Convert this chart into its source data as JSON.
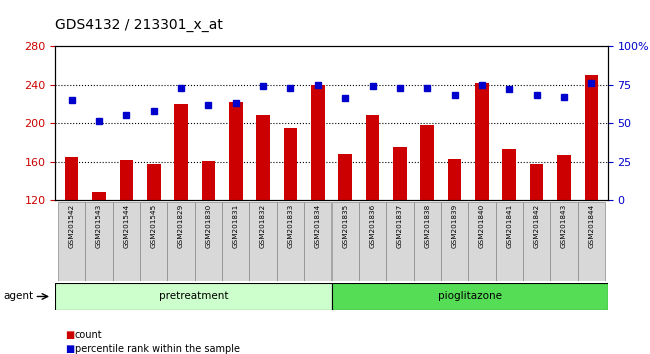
{
  "title": "GDS4132 / 213301_x_at",
  "samples": [
    "GSM201542",
    "GSM201543",
    "GSM201544",
    "GSM201545",
    "GSM201829",
    "GSM201830",
    "GSM201831",
    "GSM201832",
    "GSM201833",
    "GSM201834",
    "GSM201835",
    "GSM201836",
    "GSM201837",
    "GSM201838",
    "GSM201839",
    "GSM201840",
    "GSM201841",
    "GSM201842",
    "GSM201843",
    "GSM201844"
  ],
  "counts": [
    165,
    128,
    162,
    157,
    220,
    161,
    222,
    208,
    195,
    240,
    168,
    208,
    175,
    198,
    163,
    242,
    173,
    157,
    167,
    250
  ],
  "percentiles": [
    65,
    51,
    55,
    58,
    73,
    62,
    63,
    74,
    73,
    75,
    66,
    74,
    73,
    73,
    68,
    75,
    72,
    68,
    67,
    76
  ],
  "pretreatment_count": 10,
  "pioglitazone_count": 10,
  "ylim_left": [
    120,
    280
  ],
  "ylim_right": [
    0,
    100
  ],
  "yticks_left": [
    120,
    160,
    200,
    240,
    280
  ],
  "yticks_right": [
    0,
    25,
    50,
    75,
    100
  ],
  "ytick_labels_right": [
    "0",
    "25",
    "50",
    "75",
    "100%"
  ],
  "hgrid_lines": [
    160,
    200,
    240
  ],
  "bar_color": "#cc0000",
  "dot_color": "#0000cc",
  "pretreatment_color": "#ccffcc",
  "pioglitazone_color": "#55dd55",
  "agent_label": "agent",
  "pretreatment_label": "pretreatment",
  "pioglitazone_label": "pioglitazone",
  "legend_count_label": "count",
  "legend_pct_label": "percentile rank within the sample",
  "title_fontsize": 10,
  "axis_tick_fontsize": 8,
  "bar_width": 0.5,
  "dot_size": 5
}
